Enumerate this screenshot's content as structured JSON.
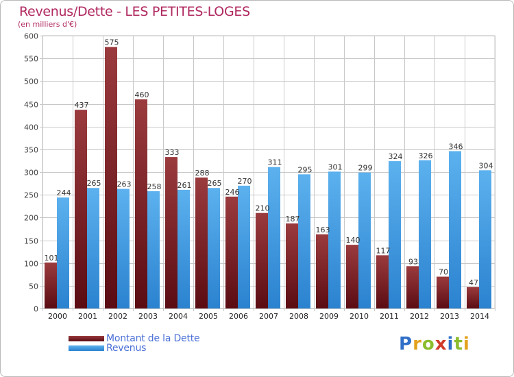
{
  "header": {
    "title": "Revenus/Dette - LES PETITES-LOGES",
    "subtitle": "(en milliers d'€)"
  },
  "colors": {
    "dette_dark": "#5a0c12",
    "dette_light": "#9b3b3e",
    "revenus_dark": "#2b82cf",
    "revenus_light": "#5cb1ee",
    "grid": "#c8c8c8",
    "title": "#b0285f"
  },
  "chart_data": {
    "type": "bar",
    "title": "Revenus/Dette - LES PETITES-LOGES",
    "subtitle": "(en milliers d'€)",
    "xlabel": "",
    "ylabel": "",
    "ylim": [
      0,
      600
    ],
    "yticks": [
      0,
      50,
      100,
      150,
      200,
      250,
      300,
      350,
      400,
      450,
      500,
      550,
      600
    ],
    "grid": true,
    "categories": [
      "2000",
      "2001",
      "2002",
      "2003",
      "2004",
      "2005",
      "2006",
      "2007",
      "2008",
      "2009",
      "2010",
      "2011",
      "2012",
      "2013",
      "2014"
    ],
    "series": [
      {
        "name": "Montant de la Dette",
        "values": [
          101,
          437,
          575,
          460,
          333,
          288,
          246,
          210,
          187,
          163,
          140,
          117,
          93,
          70,
          47
        ]
      },
      {
        "name": "Revenus",
        "values": [
          244,
          265,
          263,
          258,
          261,
          265,
          270,
          311,
          295,
          301,
          299,
          324,
          326,
          346,
          304
        ]
      }
    ],
    "legend_position": "bottom-left"
  },
  "legend": {
    "items": [
      {
        "label": "Montant de la Dette"
      },
      {
        "label": "Revenus"
      }
    ]
  },
  "logo": {
    "letters": [
      "P",
      "r",
      "o",
      "x",
      "i",
      "t",
      "i"
    ],
    "colors": [
      "#2f6fc7",
      "#e2a21d",
      "#8bbd2d",
      "#d13a2a",
      "#2f6fc7",
      "#8bbd2d",
      "#e2a21d"
    ]
  }
}
